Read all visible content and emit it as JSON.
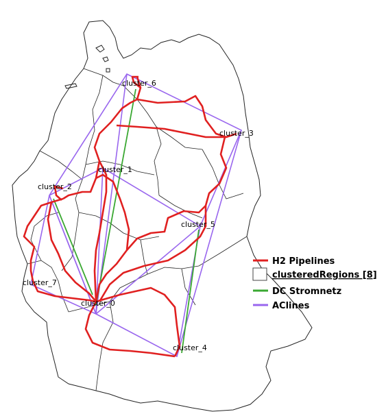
{
  "map": {
    "clusters": [
      {
        "id": "cluster_0",
        "label": "cluster_0"
      },
      {
        "id": "cluster_1",
        "label": "cluster_1"
      },
      {
        "id": "cluster_2",
        "label": "cluster_2"
      },
      {
        "id": "cluster_3",
        "label": "cluster_3"
      },
      {
        "id": "cluster_4",
        "label": "cluster_4"
      },
      {
        "id": "cluster_5",
        "label": "cluster_5"
      },
      {
        "id": "cluster_6",
        "label": "cluster_6"
      },
      {
        "id": "cluster_7",
        "label": "cluster_7"
      }
    ]
  },
  "legend": {
    "items": [
      {
        "label": "H2 Pipelines",
        "color": "#e02020",
        "type": "line"
      },
      {
        "label": "clusteredRegions [8]",
        "color": "#444444",
        "type": "box"
      },
      {
        "label": "DC Stromnetz",
        "color": "#3aa832",
        "type": "line"
      },
      {
        "label": "AClines",
        "color": "#9966ee",
        "type": "line"
      }
    ]
  },
  "colors": {
    "h2": "#e02020",
    "dc": "#3aa832",
    "ac": "#9966ee",
    "border": "#222222"
  }
}
